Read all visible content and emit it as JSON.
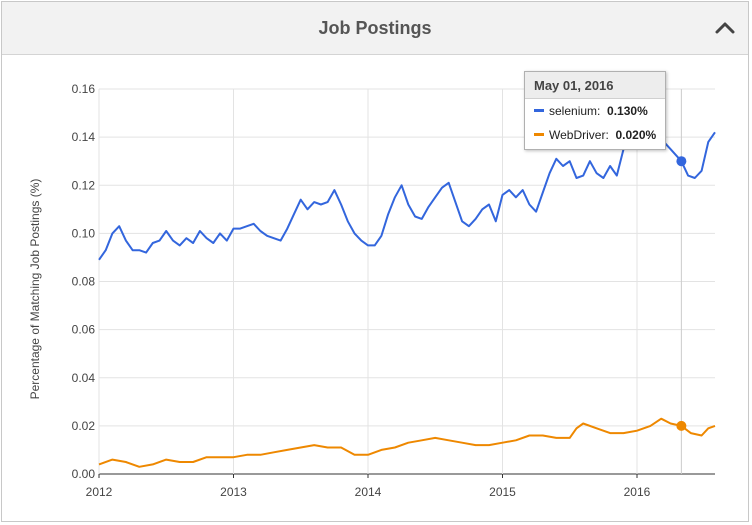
{
  "header": {
    "title": "Job Postings",
    "collapse_icon": "chevron-up-icon"
  },
  "tooltip": {
    "date": "May 01, 2016",
    "rows": [
      {
        "name": "selenium",
        "value": "0.130%",
        "color": "#3366dd"
      },
      {
        "name": "WebDriver",
        "value": "0.020%",
        "color": "#ee8800"
      }
    ]
  },
  "chart_data": {
    "type": "line",
    "title": "",
    "xlabel": "",
    "ylabel": "Percentage of Matching Job Postings (%)",
    "xlim": [
      2012.0,
      2016.58
    ],
    "ylim": [
      0.0,
      0.16
    ],
    "x_ticks": [
      2012,
      2013,
      2014,
      2015,
      2016
    ],
    "x_tick_labels": [
      "2012",
      "2013",
      "2014",
      "2015",
      "2016"
    ],
    "y_ticks": [
      0.0,
      0.02,
      0.04,
      0.06,
      0.08,
      0.1,
      0.12,
      0.14,
      0.16
    ],
    "y_tick_labels": [
      "0.00",
      "0.02",
      "0.04",
      "0.06",
      "0.08",
      "0.10",
      "0.12",
      "0.14",
      "0.16"
    ],
    "grid": true,
    "hover_x": 2016.33,
    "series": [
      {
        "name": "selenium",
        "color": "#3366dd",
        "points": [
          [
            2012.0,
            0.089
          ],
          [
            2012.05,
            0.093
          ],
          [
            2012.1,
            0.1
          ],
          [
            2012.15,
            0.103
          ],
          [
            2012.2,
            0.097
          ],
          [
            2012.25,
            0.093
          ],
          [
            2012.3,
            0.093
          ],
          [
            2012.35,
            0.092
          ],
          [
            2012.4,
            0.096
          ],
          [
            2012.45,
            0.097
          ],
          [
            2012.5,
            0.101
          ],
          [
            2012.55,
            0.097
          ],
          [
            2012.6,
            0.095
          ],
          [
            2012.65,
            0.098
          ],
          [
            2012.7,
            0.096
          ],
          [
            2012.75,
            0.101
          ],
          [
            2012.8,
            0.098
          ],
          [
            2012.85,
            0.096
          ],
          [
            2012.9,
            0.1
          ],
          [
            2012.95,
            0.097
          ],
          [
            2013.0,
            0.102
          ],
          [
            2013.05,
            0.102
          ],
          [
            2013.1,
            0.103
          ],
          [
            2013.15,
            0.104
          ],
          [
            2013.2,
            0.101
          ],
          [
            2013.25,
            0.099
          ],
          [
            2013.3,
            0.098
          ],
          [
            2013.35,
            0.097
          ],
          [
            2013.4,
            0.102
          ],
          [
            2013.45,
            0.108
          ],
          [
            2013.5,
            0.114
          ],
          [
            2013.55,
            0.11
          ],
          [
            2013.6,
            0.113
          ],
          [
            2013.65,
            0.112
          ],
          [
            2013.7,
            0.113
          ],
          [
            2013.75,
            0.118
          ],
          [
            2013.8,
            0.112
          ],
          [
            2013.85,
            0.105
          ],
          [
            2013.9,
            0.1
          ],
          [
            2013.95,
            0.097
          ],
          [
            2014.0,
            0.095
          ],
          [
            2014.05,
            0.095
          ],
          [
            2014.1,
            0.099
          ],
          [
            2014.15,
            0.108
          ],
          [
            2014.2,
            0.115
          ],
          [
            2014.25,
            0.12
          ],
          [
            2014.3,
            0.112
          ],
          [
            2014.35,
            0.107
          ],
          [
            2014.4,
            0.106
          ],
          [
            2014.45,
            0.111
          ],
          [
            2014.5,
            0.115
          ],
          [
            2014.55,
            0.119
          ],
          [
            2014.6,
            0.121
          ],
          [
            2014.65,
            0.113
          ],
          [
            2014.7,
            0.105
          ],
          [
            2014.75,
            0.103
          ],
          [
            2014.8,
            0.106
          ],
          [
            2014.85,
            0.11
          ],
          [
            2014.9,
            0.112
          ],
          [
            2014.95,
            0.105
          ],
          [
            2015.0,
            0.116
          ],
          [
            2015.05,
            0.118
          ],
          [
            2015.1,
            0.115
          ],
          [
            2015.15,
            0.118
          ],
          [
            2015.2,
            0.112
          ],
          [
            2015.25,
            0.109
          ],
          [
            2015.3,
            0.117
          ],
          [
            2015.35,
            0.125
          ],
          [
            2015.4,
            0.131
          ],
          [
            2015.45,
            0.128
          ],
          [
            2015.5,
            0.13
          ],
          [
            2015.55,
            0.123
          ],
          [
            2015.6,
            0.124
          ],
          [
            2015.65,
            0.13
          ],
          [
            2015.7,
            0.125
          ],
          [
            2015.75,
            0.123
          ],
          [
            2015.8,
            0.128
          ],
          [
            2015.85,
            0.124
          ],
          [
            2015.9,
            0.135
          ],
          [
            2015.95,
            0.137
          ],
          [
            2016.0,
            0.14
          ],
          [
            2016.05,
            0.144
          ],
          [
            2016.1,
            0.151
          ],
          [
            2016.15,
            0.142
          ],
          [
            2016.2,
            0.138
          ],
          [
            2016.25,
            0.135
          ],
          [
            2016.33,
            0.13
          ],
          [
            2016.38,
            0.124
          ],
          [
            2016.43,
            0.123
          ],
          [
            2016.48,
            0.126
          ],
          [
            2016.53,
            0.138
          ],
          [
            2016.58,
            0.142
          ]
        ]
      },
      {
        "name": "WebDriver",
        "color": "#ee8800",
        "points": [
          [
            2012.0,
            0.004
          ],
          [
            2012.1,
            0.006
          ],
          [
            2012.2,
            0.005
          ],
          [
            2012.3,
            0.003
          ],
          [
            2012.4,
            0.004
          ],
          [
            2012.5,
            0.006
          ],
          [
            2012.6,
            0.005
          ],
          [
            2012.7,
            0.005
          ],
          [
            2012.8,
            0.007
          ],
          [
            2012.9,
            0.007
          ],
          [
            2013.0,
            0.007
          ],
          [
            2013.1,
            0.008
          ],
          [
            2013.2,
            0.008
          ],
          [
            2013.3,
            0.009
          ],
          [
            2013.4,
            0.01
          ],
          [
            2013.5,
            0.011
          ],
          [
            2013.6,
            0.012
          ],
          [
            2013.7,
            0.011
          ],
          [
            2013.8,
            0.011
          ],
          [
            2013.9,
            0.008
          ],
          [
            2014.0,
            0.008
          ],
          [
            2014.1,
            0.01
          ],
          [
            2014.2,
            0.011
          ],
          [
            2014.3,
            0.013
          ],
          [
            2014.4,
            0.014
          ],
          [
            2014.5,
            0.015
          ],
          [
            2014.6,
            0.014
          ],
          [
            2014.7,
            0.013
          ],
          [
            2014.8,
            0.012
          ],
          [
            2014.9,
            0.012
          ],
          [
            2015.0,
            0.013
          ],
          [
            2015.1,
            0.014
          ],
          [
            2015.2,
            0.016
          ],
          [
            2015.3,
            0.016
          ],
          [
            2015.4,
            0.015
          ],
          [
            2015.5,
            0.015
          ],
          [
            2015.55,
            0.019
          ],
          [
            2015.6,
            0.021
          ],
          [
            2015.7,
            0.019
          ],
          [
            2015.8,
            0.017
          ],
          [
            2015.9,
            0.017
          ],
          [
            2016.0,
            0.018
          ],
          [
            2016.1,
            0.02
          ],
          [
            2016.18,
            0.023
          ],
          [
            2016.25,
            0.021
          ],
          [
            2016.33,
            0.02
          ],
          [
            2016.4,
            0.017
          ],
          [
            2016.48,
            0.016
          ],
          [
            2016.53,
            0.019
          ],
          [
            2016.58,
            0.02
          ]
        ]
      }
    ]
  }
}
